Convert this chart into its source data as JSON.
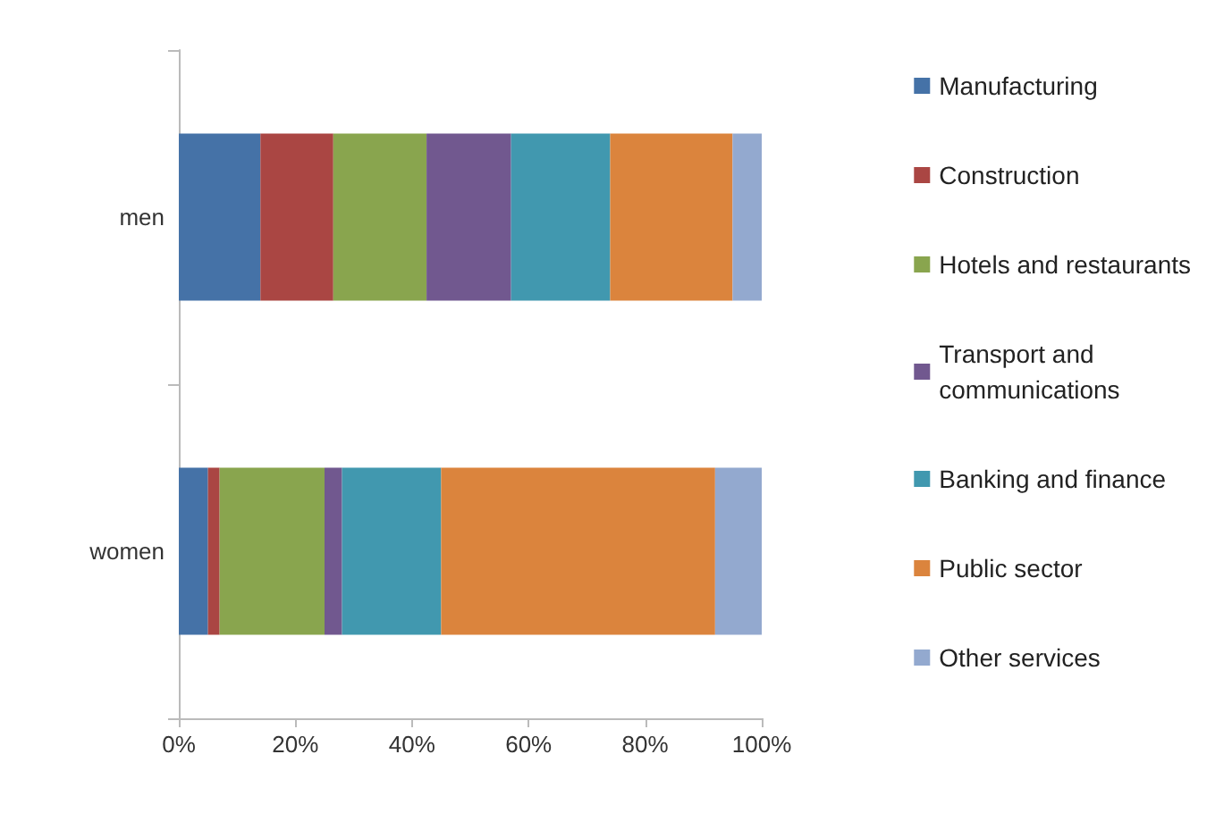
{
  "chart_data": {
    "type": "bar",
    "orientation": "horizontal",
    "stacked": true,
    "categories": [
      "men",
      "women"
    ],
    "series": [
      {
        "name": "Manufacturing",
        "color": "#4572a7",
        "values": [
          14,
          5
        ]
      },
      {
        "name": "Construction",
        "color": "#aa4643",
        "values": [
          12.5,
          2
        ]
      },
      {
        "name": "Hotels and restaurants",
        "color": "#89a54e",
        "values": [
          16,
          18
        ]
      },
      {
        "name": "Transport and communications",
        "color": "#71588f",
        "values": [
          14.5,
          3
        ]
      },
      {
        "name": "Banking and finance",
        "color": "#4198af",
        "values": [
          17,
          17
        ]
      },
      {
        "name": "Public sector",
        "color": "#db843d",
        "values": [
          21,
          47
        ]
      },
      {
        "name": "Other services",
        "color": "#93a9cf",
        "values": [
          5,
          8
        ]
      }
    ],
    "xlim": [
      0,
      100
    ],
    "xticks": [
      {
        "value": 0,
        "label": "0%"
      },
      {
        "value": 20,
        "label": "20%"
      },
      {
        "value": 40,
        "label": "40%"
      },
      {
        "value": 60,
        "label": "60%"
      },
      {
        "value": 80,
        "label": "80%"
      },
      {
        "value": 100,
        "label": "100%"
      }
    ],
    "grid": false,
    "legend": "right"
  }
}
